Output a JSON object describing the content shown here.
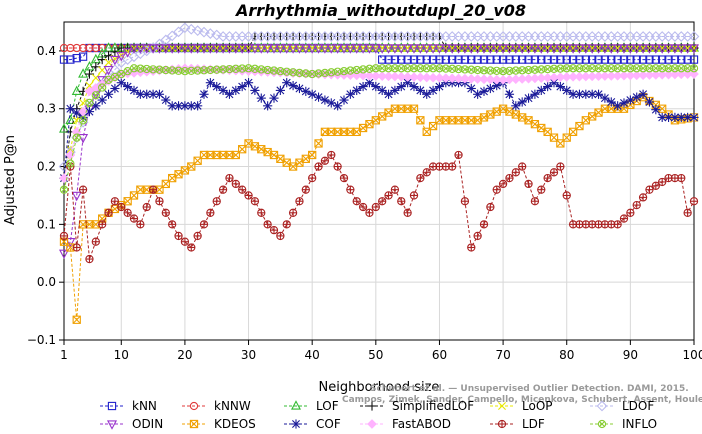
{
  "chart_data": {
    "type": "line",
    "title": "Arrhythmia_withoutdupl_20_v08",
    "xlabel": "Neighborhood size",
    "ylabel": "Adjusted P@n",
    "xlim": [
      1,
      100
    ],
    "ylim": [
      -0.1,
      0.45
    ],
    "x_ticks": [
      1,
      10,
      20,
      30,
      40,
      50,
      60,
      70,
      80,
      90,
      100
    ],
    "y_ticks": [
      -0.1,
      0.0,
      0.1,
      0.2,
      0.3,
      0.4
    ],
    "x_tick_labels": [
      "1",
      "10",
      "20",
      "30",
      "40",
      "50",
      "60",
      "70",
      "80",
      "90",
      "100"
    ],
    "y_tick_labels": [
      "−0.1",
      "0.0",
      "0.1",
      "0.2",
      "0.3",
      "0.4"
    ],
    "grid": true,
    "legend_position": "bottom",
    "watermark": [
      "Schubert et al. — Unsupervised Outlier Detection. DAMI, 2015.",
      "Campos, Zimek, Sander, Campello, Micenkova, Schubert, Assent, Houle"
    ],
    "series": [
      {
        "name": "kNN",
        "color": "#2222cc",
        "marker": "square",
        "anchors": [
          [
            1,
            0.385
          ],
          [
            2,
            0.385
          ],
          [
            4,
            0.39
          ],
          [
            5,
            0.405
          ],
          [
            50,
            0.405
          ],
          [
            51,
            0.385
          ],
          [
            100,
            0.385
          ]
        ]
      },
      {
        "name": "kNNW",
        "color": "#e03a3a",
        "marker": "circle",
        "anchors": [
          [
            1,
            0.405
          ],
          [
            100,
            0.405
          ]
        ]
      },
      {
        "name": "LOF",
        "color": "#33bb33",
        "marker": "triangle-up",
        "anchors": [
          [
            1,
            0.265
          ],
          [
            2,
            0.28
          ],
          [
            3,
            0.33
          ],
          [
            4,
            0.36
          ],
          [
            6,
            0.385
          ],
          [
            8,
            0.405
          ],
          [
            100,
            0.405
          ]
        ]
      },
      {
        "name": "SimplifiedLOF",
        "color": "#111111",
        "marker": "plus",
        "anchors": [
          [
            1,
            0.18
          ],
          [
            2,
            0.26
          ],
          [
            3,
            0.3
          ],
          [
            5,
            0.36
          ],
          [
            7,
            0.385
          ],
          [
            10,
            0.405
          ],
          [
            30,
            0.405
          ],
          [
            31,
            0.425
          ],
          [
            60,
            0.425
          ],
          [
            61,
            0.405
          ],
          [
            100,
            0.405
          ]
        ]
      },
      {
        "name": "LoOP",
        "color": "#e8e800",
        "marker": "x",
        "anchors": [
          [
            1,
            0.18
          ],
          [
            3,
            0.28
          ],
          [
            5,
            0.34
          ],
          [
            8,
            0.38
          ],
          [
            12,
            0.405
          ],
          [
            100,
            0.405
          ]
        ]
      },
      {
        "name": "LDOF",
        "color": "#bbbbee",
        "marker": "diamond",
        "anchors": [
          [
            1,
            0.2
          ],
          [
            3,
            0.25
          ],
          [
            6,
            0.33
          ],
          [
            10,
            0.38
          ],
          [
            15,
            0.405
          ],
          [
            20,
            0.44
          ],
          [
            26,
            0.425
          ],
          [
            100,
            0.425
          ]
        ]
      },
      {
        "name": "ODIN",
        "color": "#9933cc",
        "marker": "triangle-down",
        "anchors": [
          [
            1,
            0.05
          ],
          [
            2,
            0.07
          ],
          [
            3,
            0.15
          ],
          [
            4,
            0.25
          ],
          [
            5,
            0.3
          ],
          [
            7,
            0.35
          ],
          [
            9,
            0.385
          ],
          [
            12,
            0.405
          ],
          [
            100,
            0.405
          ]
        ]
      },
      {
        "name": "KDEOS",
        "color": "#f0a000",
        "marker": "square-x",
        "anchors": [
          [
            1,
            0.07
          ],
          [
            2,
            0.06
          ],
          [
            3,
            -0.065
          ],
          [
            4,
            0.1
          ],
          [
            6,
            0.1
          ],
          [
            8,
            0.12
          ],
          [
            11,
            0.14
          ],
          [
            13,
            0.16
          ],
          [
            16,
            0.16
          ],
          [
            18,
            0.18
          ],
          [
            21,
            0.2
          ],
          [
            23,
            0.22
          ],
          [
            28,
            0.22
          ],
          [
            30,
            0.24
          ],
          [
            34,
            0.22
          ],
          [
            37,
            0.2
          ],
          [
            40,
            0.22
          ],
          [
            42,
            0.26
          ],
          [
            47,
            0.26
          ],
          [
            50,
            0.28
          ],
          [
            53,
            0.3
          ],
          [
            56,
            0.3
          ],
          [
            58,
            0.26
          ],
          [
            60,
            0.28
          ],
          [
            66,
            0.28
          ],
          [
            70,
            0.3
          ],
          [
            74,
            0.28
          ],
          [
            77,
            0.26
          ],
          [
            79,
            0.24
          ],
          [
            81,
            0.26
          ],
          [
            83,
            0.28
          ],
          [
            86,
            0.3
          ],
          [
            89,
            0.3
          ],
          [
            92,
            0.32
          ],
          [
            95,
            0.3
          ],
          [
            97,
            0.28
          ],
          [
            100,
            0.285
          ]
        ]
      },
      {
        "name": "COF",
        "color": "#1a1a99",
        "marker": "star",
        "anchors": [
          [
            1,
            0.18
          ],
          [
            2,
            0.3
          ],
          [
            4,
            0.285
          ],
          [
            6,
            0.305
          ],
          [
            8,
            0.325
          ],
          [
            10,
            0.345
          ],
          [
            13,
            0.325
          ],
          [
            16,
            0.325
          ],
          [
            18,
            0.305
          ],
          [
            22,
            0.305
          ],
          [
            24,
            0.345
          ],
          [
            27,
            0.325
          ],
          [
            30,
            0.345
          ],
          [
            33,
            0.305
          ],
          [
            36,
            0.345
          ],
          [
            40,
            0.325
          ],
          [
            44,
            0.305
          ],
          [
            46,
            0.325
          ],
          [
            49,
            0.345
          ],
          [
            52,
            0.325
          ],
          [
            55,
            0.345
          ],
          [
            58,
            0.325
          ],
          [
            61,
            0.345
          ],
          [
            64,
            0.345
          ],
          [
            66,
            0.325
          ],
          [
            70,
            0.345
          ],
          [
            72,
            0.305
          ],
          [
            75,
            0.325
          ],
          [
            78,
            0.345
          ],
          [
            81,
            0.325
          ],
          [
            85,
            0.325
          ],
          [
            88,
            0.305
          ],
          [
            92,
            0.325
          ],
          [
            95,
            0.285
          ],
          [
            100,
            0.285
          ]
        ]
      },
      {
        "name": "FastABOD",
        "color": "#ffb3ff",
        "marker": "diamond-filled",
        "anchors": [
          [
            1,
            0.18
          ],
          [
            3,
            0.26
          ],
          [
            5,
            0.33
          ],
          [
            10,
            0.36
          ],
          [
            20,
            0.37
          ],
          [
            40,
            0.36
          ],
          [
            55,
            0.355
          ],
          [
            70,
            0.35
          ],
          [
            80,
            0.355
          ],
          [
            100,
            0.36
          ]
        ]
      },
      {
        "name": "LDF",
        "color": "#aa2222",
        "marker": "circle-plus",
        "anchors": [
          [
            1,
            0.08
          ],
          [
            2,
            0.2
          ],
          [
            3,
            0.06
          ],
          [
            4,
            0.16
          ],
          [
            5,
            0.04
          ],
          [
            7,
            0.1
          ],
          [
            9,
            0.14
          ],
          [
            11,
            0.12
          ],
          [
            13,
            0.1
          ],
          [
            15,
            0.16
          ],
          [
            17,
            0.12
          ],
          [
            19,
            0.08
          ],
          [
            21,
            0.06
          ],
          [
            23,
            0.1
          ],
          [
            25,
            0.14
          ],
          [
            27,
            0.18
          ],
          [
            29,
            0.16
          ],
          [
            31,
            0.14
          ],
          [
            33,
            0.1
          ],
          [
            35,
            0.08
          ],
          [
            37,
            0.12
          ],
          [
            39,
            0.16
          ],
          [
            41,
            0.2
          ],
          [
            43,
            0.22
          ],
          [
            45,
            0.18
          ],
          [
            47,
            0.14
          ],
          [
            49,
            0.12
          ],
          [
            51,
            0.14
          ],
          [
            53,
            0.16
          ],
          [
            55,
            0.12
          ],
          [
            57,
            0.18
          ],
          [
            59,
            0.2
          ],
          [
            62,
            0.2
          ],
          [
            63,
            0.22
          ],
          [
            65,
            0.06
          ],
          [
            67,
            0.1
          ],
          [
            69,
            0.16
          ],
          [
            71,
            0.18
          ],
          [
            73,
            0.2
          ],
          [
            75,
            0.14
          ],
          [
            77,
            0.18
          ],
          [
            79,
            0.2
          ],
          [
            81,
            0.1
          ],
          [
            88,
            0.1
          ],
          [
            90,
            0.12
          ],
          [
            93,
            0.16
          ],
          [
            96,
            0.18
          ],
          [
            98,
            0.18
          ],
          [
            99,
            0.12
          ],
          [
            100,
            0.14
          ]
        ]
      },
      {
        "name": "INFLO",
        "color": "#88cc33",
        "marker": "circle-x",
        "anchors": [
          [
            1,
            0.16
          ],
          [
            3,
            0.25
          ],
          [
            5,
            0.31
          ],
          [
            8,
            0.35
          ],
          [
            12,
            0.37
          ],
          [
            20,
            0.365
          ],
          [
            30,
            0.37
          ],
          [
            40,
            0.36
          ],
          [
            50,
            0.37
          ],
          [
            60,
            0.37
          ],
          [
            70,
            0.365
          ],
          [
            80,
            0.37
          ],
          [
            90,
            0.37
          ],
          [
            100,
            0.37
          ]
        ]
      }
    ]
  }
}
